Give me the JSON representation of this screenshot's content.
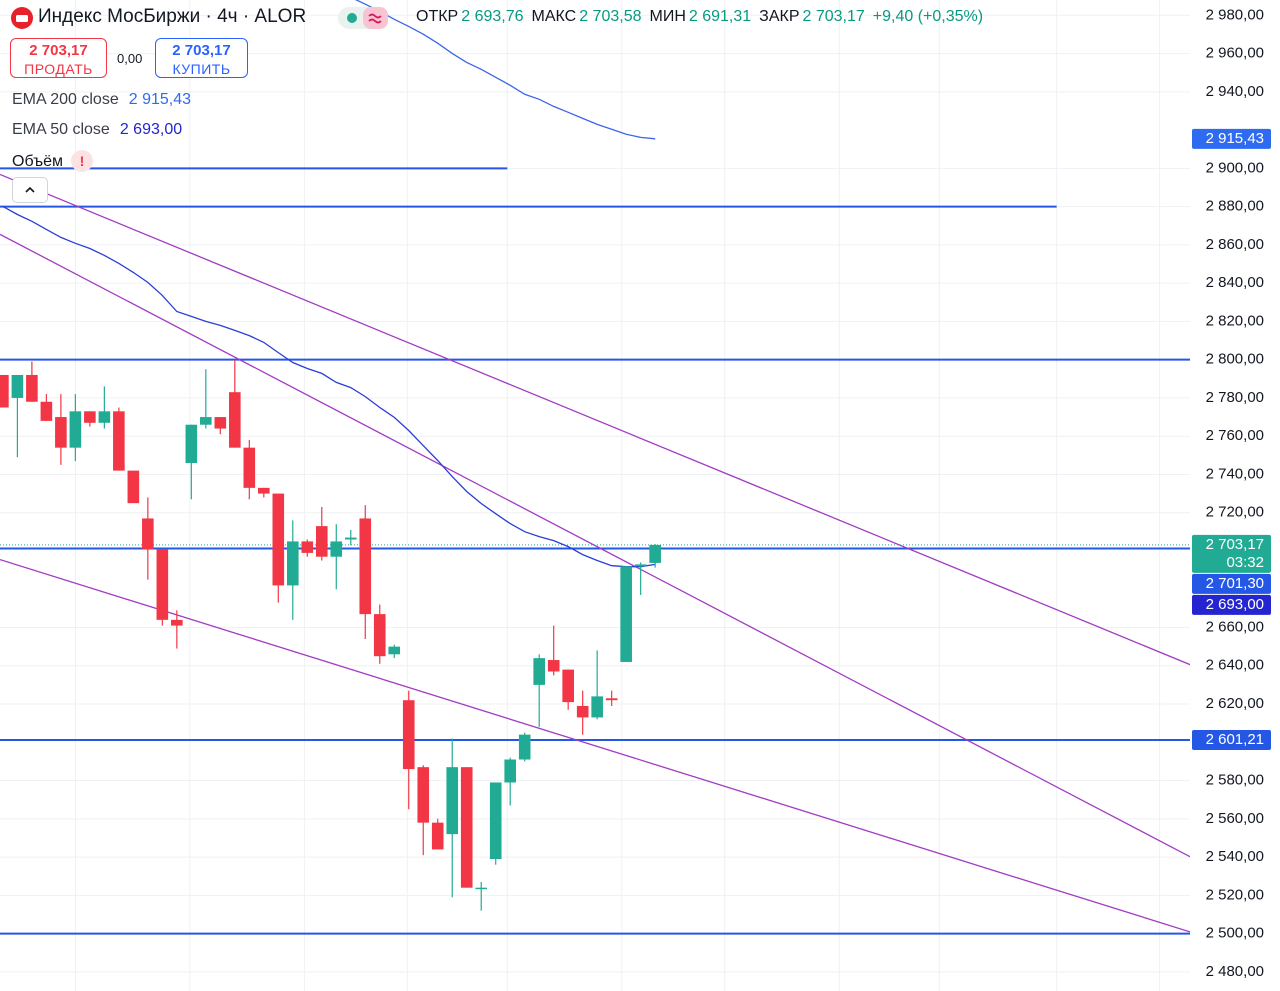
{
  "header": {
    "symbol": "Индекс МосБиржи · 4ч · ALOR",
    "ohlc": [
      {
        "key": "ОТКР",
        "value": "2 693,76"
      },
      {
        "key": "МАКС",
        "value": "2 703,58"
      },
      {
        "key": "МИН",
        "value": "2 691,31"
      },
      {
        "key": "ЗАКР",
        "value": "2 703,17"
      }
    ],
    "change": "+9,40 (+0,35%)"
  },
  "trade": {
    "sell_price": "2 703,17",
    "sell": "ПРОДАТЬ",
    "spread": "0,00",
    "buy_price": "2 703,17",
    "buy": "КУПИТЬ"
  },
  "volume": {
    "name": "Объём",
    "alert": "!"
  },
  "chart_data": {
    "type": "candlestick",
    "up_color": "#22ab94",
    "down_color": "#f23645",
    "open": [
      2792,
      2780,
      2792,
      2778,
      2770,
      2754,
      2773,
      2767,
      2773,
      2742,
      2717,
      2701,
      2664,
      2746,
      2766,
      2770,
      2783,
      2754,
      2733,
      2730,
      2682,
      2705,
      2713,
      2697,
      2706,
      2717,
      2667,
      2646,
      2622,
      2587,
      2558,
      2552,
      2587,
      2524,
      2539,
      2579,
      2591,
      2630,
      2643,
      2638,
      2619,
      2613,
      2623,
      2642,
      2692,
      2693.76
    ],
    "high": [
      2792,
      2792,
      2799,
      2782,
      2782,
      2782,
      2773,
      2786,
      2775,
      2742,
      2728,
      2701,
      2669,
      2766,
      2795,
      2770,
      2800,
      2758,
      2733,
      2730,
      2716,
      2706,
      2723,
      2714,
      2711,
      2724,
      2672,
      2651,
      2627,
      2588,
      2560,
      2602,
      2587,
      2527,
      2579,
      2592,
      2605,
      2646,
      2661,
      2638,
      2627,
      2648,
      2627,
      2692,
      2694,
      2703.58
    ],
    "low": [
      2775,
      2749,
      2778,
      2768,
      2745,
      2747,
      2765,
      2764,
      2742,
      2725,
      2685,
      2661,
      2649,
      2727,
      2764,
      2761,
      2754,
      2727,
      2728,
      2673,
      2664,
      2697,
      2695,
      2680,
      2703,
      2654,
      2641,
      2644,
      2565,
      2541,
      2544,
      2519,
      2524,
      2512,
      2536,
      2567,
      2590,
      2608,
      2635,
      2617,
      2604,
      2612,
      2619,
      2642,
      2677,
      2691.31
    ],
    "close": [
      2775,
      2792,
      2778,
      2768,
      2754,
      2773,
      2767,
      2773,
      2742,
      2725,
      2701,
      2664,
      2661,
      2766,
      2770,
      2764,
      2754,
      2733,
      2730,
      2682,
      2705,
      2699,
      2697,
      2705,
      2707,
      2667,
      2645,
      2650,
      2586,
      2558,
      2544,
      2587,
      2524,
      2524,
      2579,
      2591,
      2604,
      2644,
      2637,
      2621,
      2613,
      2624,
      2622,
      2692,
      2693,
      2703.17
    ],
    "series": [
      {
        "name": "EMA 200 close",
        "color": "#3a66e8",
        "tag_color": "#2f6bf0",
        "value_label": "2 915,43",
        "values": [
          null,
          null,
          null,
          null,
          null,
          null,
          null,
          null,
          null,
          null,
          null,
          null,
          null,
          null,
          null,
          null,
          null,
          null,
          null,
          null,
          null,
          null,
          null,
          null,
          2989.4,
          2985.8,
          2982.1,
          2977.9,
          2974.2,
          2970.1,
          2965.4,
          2960.1,
          2955.4,
          2951.8,
          2947.6,
          2943.4,
          2938.7,
          2936.1,
          2932.4,
          2929.3,
          2926.1,
          2923,
          2920.4,
          2917.8,
          2916.2,
          2915.43
        ]
      },
      {
        "name": "EMA 50 close",
        "color": "#2a3fd6",
        "tag_color": "#2424d0",
        "value_label": "2 693,00",
        "values": [
          2880.1,
          2875.9,
          2872.3,
          2868.1,
          2863.9,
          2860.8,
          2858.1,
          2854.5,
          2850.3,
          2845.6,
          2840.4,
          2833.6,
          2825.2,
          2822.6,
          2820,
          2817.9,
          2815.3,
          2812.6,
          2809,
          2803.7,
          2798.5,
          2795.4,
          2792.8,
          2788.1,
          2785.4,
          2780.7,
          2775,
          2769.8,
          2763,
          2755.1,
          2747.3,
          2738.9,
          2731.1,
          2724.8,
          2719.5,
          2714.3,
          2710.1,
          2707.5,
          2705.4,
          2702.3,
          2698.1,
          2695,
          2692.3,
          2691.8,
          2691.8,
          2693
        ]
      }
    ],
    "last_price": {
      "value": 2703.17,
      "label": "2 703,17",
      "timer": "03:32",
      "color": "#22ab94"
    },
    "hlines": [
      {
        "value": 2900,
        "x_end": 34.8
      },
      {
        "value": 2880,
        "x_end": 72.7
      },
      {
        "value": 2800
      },
      {
        "value": 2701.3,
        "label": "2 701,30"
      },
      {
        "value": 2601.21,
        "label": "2 601,21"
      },
      {
        "value": 2500
      }
    ],
    "hline_color": "#2457e6",
    "trend_lines": [
      {
        "x": [
          -0.2,
          81.9
        ],
        "y": [
          2896.8,
          2640.6
        ]
      },
      {
        "x": [
          -0.2,
          81.9
        ],
        "y": [
          2865.5,
          2540.2
        ]
      },
      {
        "x": [
          -0.2,
          81.9
        ],
        "y": [
          2695.5,
          2500.9
        ]
      }
    ],
    "trend_color": "#a23bc4",
    "xlim": [
      -0.2,
      81.9
    ],
    "xgrid": [
      5,
      12.9,
      20.8,
      27.9,
      34.8,
      42.7,
      49.8,
      57.7,
      64.6,
      72.7,
      79.8
    ],
    "ylim": [
      2470,
      2988
    ],
    "yticks": [
      {
        "value": 2480,
        "label": "2 480,00"
      },
      {
        "value": 2500,
        "label": "2 500,00"
      },
      {
        "value": 2520,
        "label": "2 520,00"
      },
      {
        "value": 2540,
        "label": "2 540,00"
      },
      {
        "value": 2560,
        "label": "2 560,00"
      },
      {
        "value": 2580,
        "label": "2 580,00"
      },
      {
        "value": 2620,
        "label": "2 620,00"
      },
      {
        "value": 2640,
        "label": "2 640,00"
      },
      {
        "value": 2660,
        "label": "2 660,00"
      },
      {
        "value": 2720,
        "label": "2 720,00"
      },
      {
        "value": 2740,
        "label": "2 740,00"
      },
      {
        "value": 2760,
        "label": "2 760,00"
      },
      {
        "value": 2780,
        "label": "2 780,00"
      },
      {
        "value": 2800,
        "label": "2 800,00"
      },
      {
        "value": 2820,
        "label": "2 820,00"
      },
      {
        "value": 2840,
        "label": "2 840,00"
      },
      {
        "value": 2860,
        "label": "2 860,00"
      },
      {
        "value": 2880,
        "label": "2 880,00"
      },
      {
        "value": 2900,
        "label": "2 900,00"
      },
      {
        "value": 2940,
        "label": "2 940,00"
      },
      {
        "value": 2960,
        "label": "2 960,00"
      },
      {
        "value": 2980,
        "label": "2 980,00"
      }
    ],
    "grid": true
  }
}
